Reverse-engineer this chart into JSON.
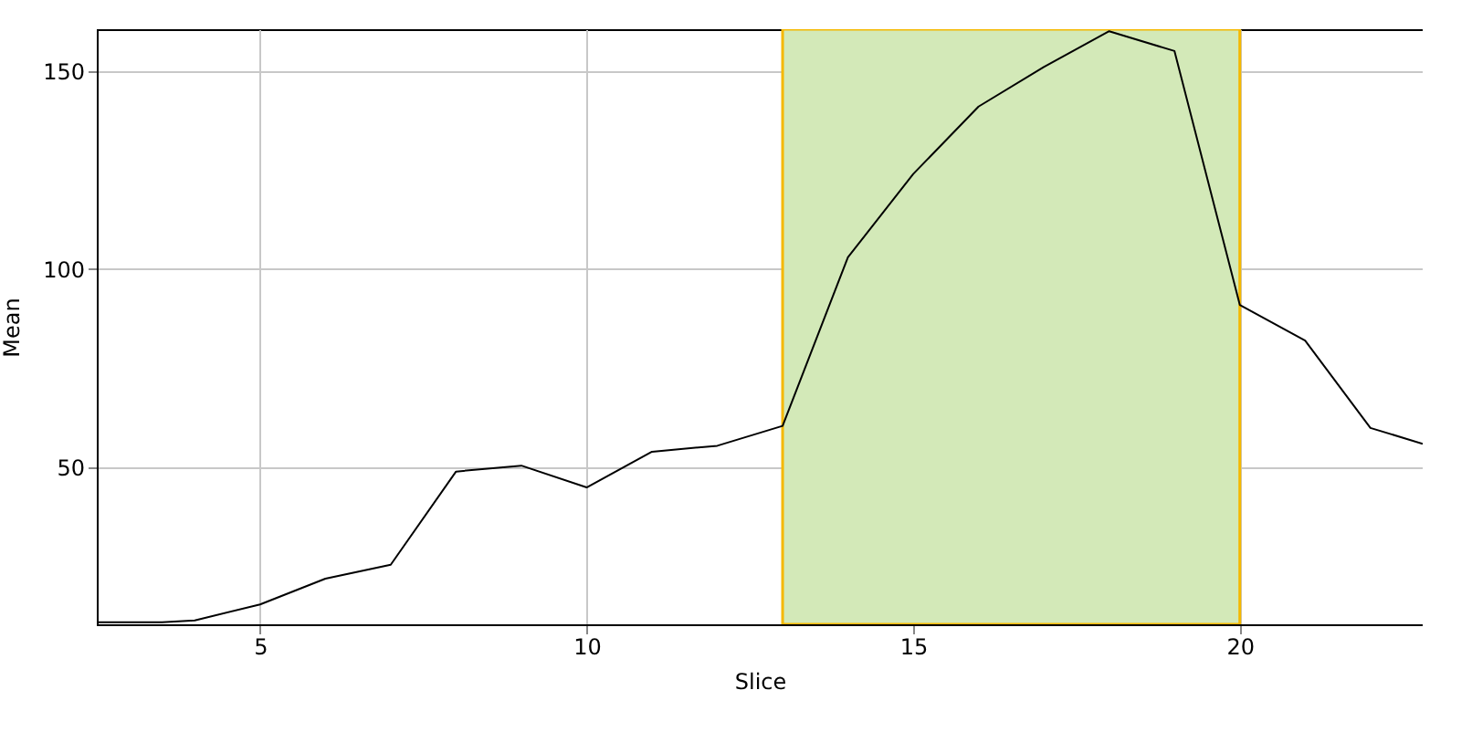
{
  "chart_data": {
    "type": "line",
    "xlabel": "Slice",
    "ylabel": "Mean",
    "x": [
      2.5,
      3.5,
      4,
      5,
      6,
      7,
      8,
      9,
      10,
      11,
      12,
      13,
      14,
      15,
      16,
      17,
      18,
      19,
      20,
      21,
      22,
      22.8
    ],
    "series": [
      {
        "color": "#000000",
        "values": [
          11,
          11,
          11.5,
          15.5,
          22,
          25.5,
          49,
          50.5,
          45,
          54,
          55.5,
          60.5,
          103,
          124,
          141,
          151,
          160,
          155,
          91,
          82,
          60,
          56
        ]
      }
    ],
    "xlim": [
      2.5,
      22.8
    ],
    "ylim": [
      10.5,
      160.5
    ],
    "xticks": [
      5,
      10,
      15,
      20
    ],
    "yticks": [
      50,
      100,
      150
    ],
    "bands": [
      {
        "axis": "x",
        "from": 13,
        "to": 20,
        "color": "#d3e9b8"
      }
    ],
    "grid": true,
    "marker": "none",
    "line_style": "solid"
  }
}
